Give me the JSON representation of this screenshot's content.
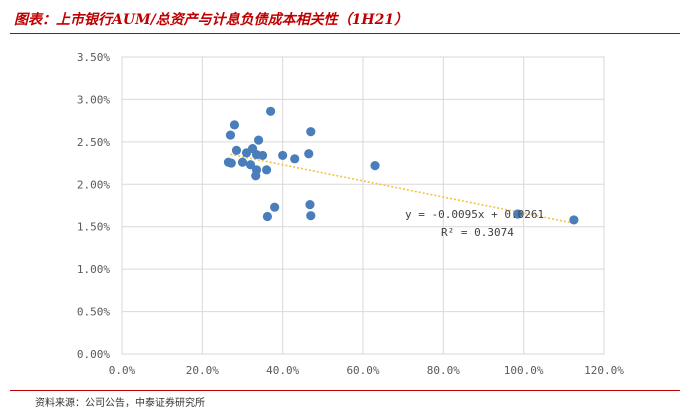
{
  "header": {
    "title": "图表：上市银行AUM/总资产与计息负债成本相关性（1H21）"
  },
  "footer": {
    "source": "资料来源：公司公告，中泰证券研究所"
  },
  "chart_data": {
    "type": "scatter",
    "title": "",
    "xlabel": "",
    "ylabel": "",
    "xlim": [
      0,
      120
    ],
    "ylim": [
      0,
      3.5
    ],
    "x_ticks": [
      0,
      20,
      40,
      60,
      80,
      100,
      120
    ],
    "y_ticks": [
      0,
      0.5,
      1.0,
      1.5,
      2.0,
      2.5,
      3.0,
      3.5
    ],
    "x_tick_labels": [
      "0.0%",
      "20.0%",
      "40.0%",
      "60.0%",
      "80.0%",
      "100.0%",
      "120.0%"
    ],
    "y_tick_labels": [
      "0.00%",
      "0.50%",
      "1.00%",
      "1.50%",
      "2.00%",
      "2.50%",
      "3.00%",
      "3.50%"
    ],
    "grid": true,
    "marker_color": "#4a7ebb",
    "trendline_color": "#f5c242",
    "points": [
      {
        "x": 27.0,
        "y": 2.58
      },
      {
        "x": 28.0,
        "y": 2.7
      },
      {
        "x": 37.0,
        "y": 2.86
      },
      {
        "x": 47.0,
        "y": 2.62
      },
      {
        "x": 34.0,
        "y": 2.52
      },
      {
        "x": 28.5,
        "y": 2.4
      },
      {
        "x": 31.0,
        "y": 2.37
      },
      {
        "x": 32.5,
        "y": 2.42
      },
      {
        "x": 33.5,
        "y": 2.35
      },
      {
        "x": 35.0,
        "y": 2.34
      },
      {
        "x": 26.5,
        "y": 2.26
      },
      {
        "x": 27.2,
        "y": 2.25
      },
      {
        "x": 30.0,
        "y": 2.26
      },
      {
        "x": 32.0,
        "y": 2.23
      },
      {
        "x": 36.0,
        "y": 2.17
      },
      {
        "x": 33.5,
        "y": 2.17
      },
      {
        "x": 33.3,
        "y": 2.1
      },
      {
        "x": 40.0,
        "y": 2.34
      },
      {
        "x": 43.0,
        "y": 2.3
      },
      {
        "x": 46.5,
        "y": 2.36
      },
      {
        "x": 63.0,
        "y": 2.22
      },
      {
        "x": 38.0,
        "y": 1.73
      },
      {
        "x": 36.2,
        "y": 1.62
      },
      {
        "x": 46.8,
        "y": 1.76
      },
      {
        "x": 47.0,
        "y": 1.63
      },
      {
        "x": 98.5,
        "y": 1.65
      },
      {
        "x": 112.5,
        "y": 1.58
      }
    ],
    "trendline": {
      "x_range": [
        27,
        112.5
      ],
      "slope": -0.0095,
      "intercept": 2.61,
      "equation": "y = -0.0095x + 0.0261",
      "r_squared": "R² = 0.3074"
    }
  }
}
